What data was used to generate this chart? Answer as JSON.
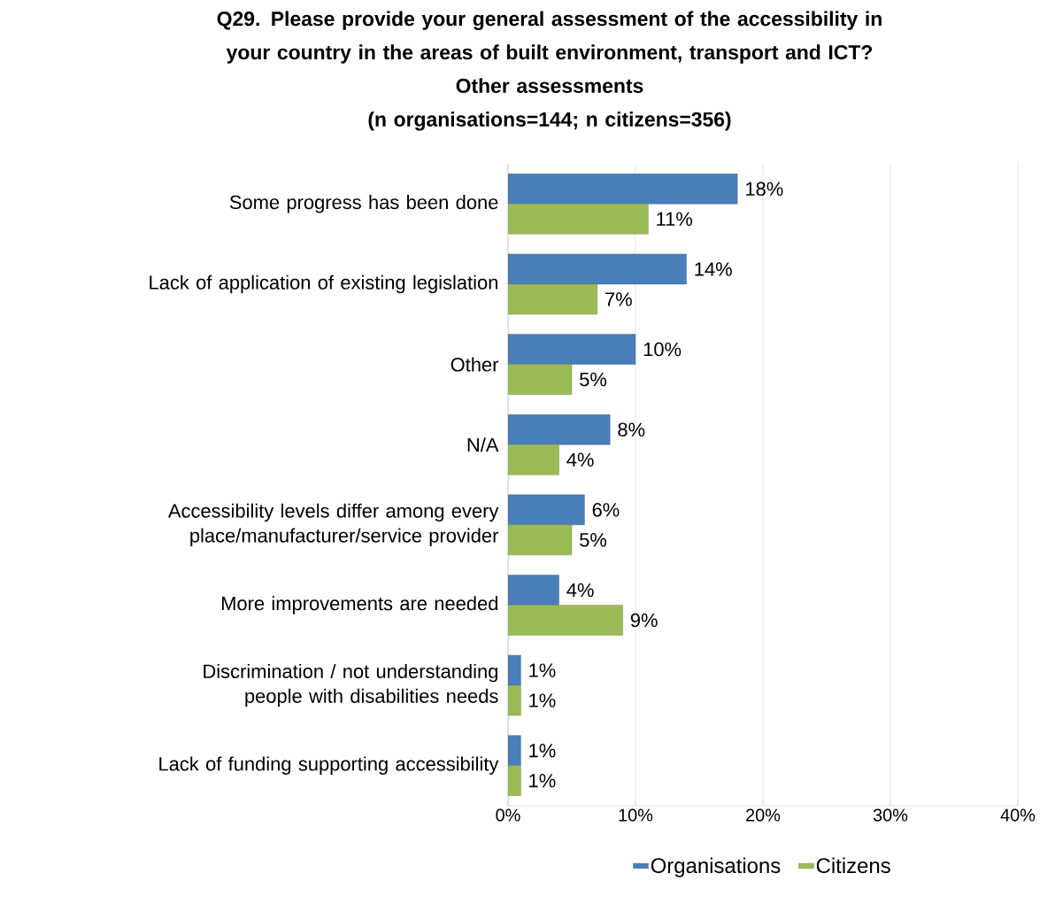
{
  "chart_data": {
    "type": "bar",
    "orientation": "horizontal",
    "title": "Q29. Please provide your general assessment of the accessibility in your country in the areas of built environment, transport and ICT?",
    "subtitle": "Other assessments",
    "annotations": [
      "(n organisations=144; n citizens=356)"
    ],
    "categories": [
      "Some progress has been done",
      "Lack of application of existing legislation",
      "Other",
      "N/A",
      "Accessibility levels differ among every place/manufacturer/service provider",
      "More improvements are needed",
      "Discrimination / not understanding people with disabilities needs",
      "Lack of funding supporting accessibility"
    ],
    "series": [
      {
        "name": "Organisations",
        "color": "#4a7ebb",
        "values": [
          18,
          14,
          10,
          8,
          6,
          4,
          1,
          1
        ],
        "value_labels": [
          "18%",
          "14%",
          "10%",
          "8%",
          "6%",
          "4%",
          "1%",
          "1%"
        ]
      },
      {
        "name": "Citizens",
        "color": "#9bbb59",
        "values": [
          11,
          7,
          5,
          4,
          5,
          9,
          1,
          1
        ],
        "value_labels": [
          "11%",
          "7%",
          "5%",
          "4%",
          "5%",
          "9%",
          "1%",
          "1%"
        ]
      }
    ],
    "xlim": [
      0,
      40
    ],
    "xticks": [
      {
        "value": 0,
        "label": "0%"
      },
      {
        "value": 10,
        "label": "10%"
      },
      {
        "value": 20,
        "label": "20%"
      },
      {
        "value": 30,
        "label": "30%"
      },
      {
        "value": 40,
        "label": "40%"
      }
    ],
    "grid": "x",
    "legend": "bottom"
  }
}
